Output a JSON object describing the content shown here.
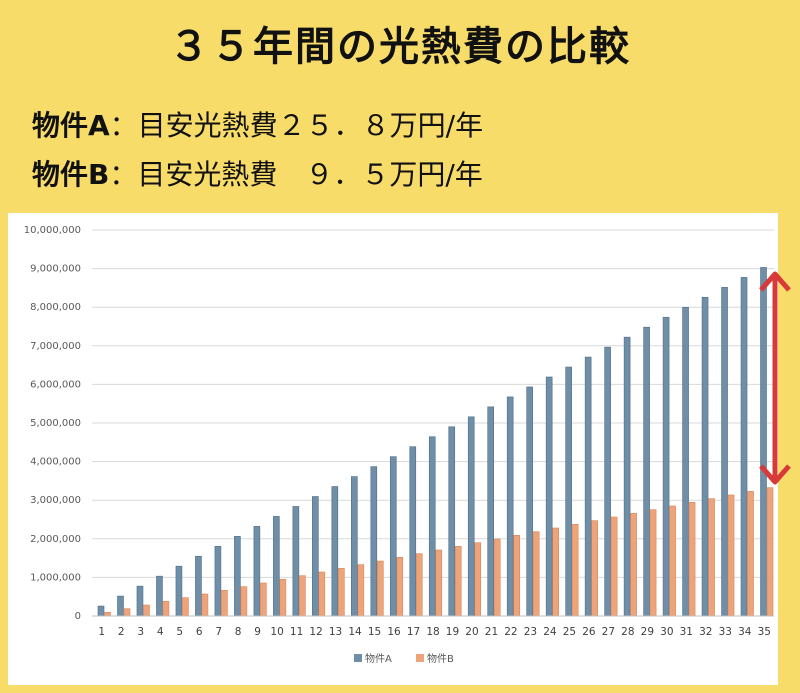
{
  "title": "３５年間の光熱費の比較",
  "lines": [
    {
      "label": "物件A",
      "text": "：目安光熱費２５．８万円/年"
    },
    {
      "label": "物件B",
      "text": "：目安光熱費　９．５万円/年"
    }
  ],
  "colors": {
    "background": "#f7dc6a",
    "series_a": "#6f8ea7",
    "series_b": "#eea47a",
    "arrow": "#d83a3a"
  },
  "chart_data": {
    "type": "bar",
    "categories": [
      "1",
      "2",
      "3",
      "4",
      "5",
      "6",
      "7",
      "8",
      "9",
      "10",
      "11",
      "12",
      "13",
      "14",
      "15",
      "16",
      "17",
      "18",
      "19",
      "20",
      "21",
      "22",
      "23",
      "24",
      "25",
      "26",
      "27",
      "28",
      "29",
      "30",
      "31",
      "32",
      "33",
      "34",
      "35"
    ],
    "series": [
      {
        "name": "物件A",
        "values": [
          258000,
          516000,
          774000,
          1032000,
          1290000,
          1548000,
          1806000,
          2064000,
          2322000,
          2580000,
          2838000,
          3096000,
          3354000,
          3612000,
          3870000,
          4128000,
          4386000,
          4644000,
          4902000,
          5160000,
          5418000,
          5676000,
          5934000,
          6192000,
          6450000,
          6708000,
          6966000,
          7224000,
          7482000,
          7740000,
          7998000,
          8256000,
          8514000,
          8772000,
          9030000
        ]
      },
      {
        "name": "物件B",
        "values": [
          95000,
          190000,
          285000,
          380000,
          475000,
          570000,
          665000,
          760000,
          855000,
          950000,
          1045000,
          1140000,
          1235000,
          1330000,
          1425000,
          1520000,
          1615000,
          1710000,
          1805000,
          1900000,
          1995000,
          2090000,
          2185000,
          2280000,
          2375000,
          2470000,
          2565000,
          2660000,
          2755000,
          2850000,
          2945000,
          3040000,
          3135000,
          3230000,
          3325000
        ]
      }
    ],
    "yticks": [
      "0",
      "1,000,000",
      "2,000,000",
      "3,000,000",
      "4,000,000",
      "5,000,000",
      "6,000,000",
      "7,000,000",
      "8,000,000",
      "9,000,000",
      "10,000,000"
    ],
    "ylim": [
      0,
      10000000
    ],
    "grid": true,
    "legend": "bottom"
  }
}
